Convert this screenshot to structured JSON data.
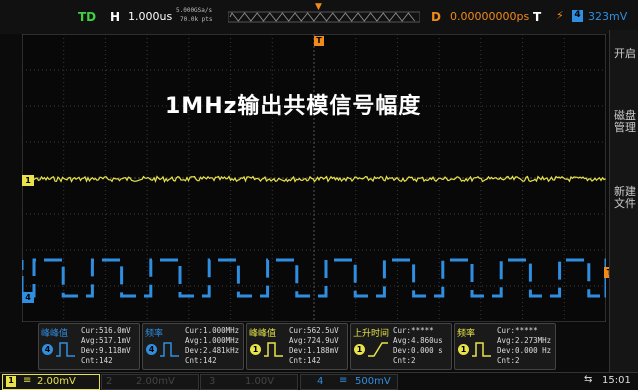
{
  "overlay_title": "1MHz输出共模信号幅度",
  "topbar": {
    "trigger_status": "TD",
    "horizontal_label": "H",
    "timebase": "1.000us",
    "sample_rate": "5.000GSa/s",
    "memory_depth": "70.0k pts",
    "delay_label": "D",
    "delay_value": "0.00000000ps",
    "trigger_label": "T",
    "trigger_channel": "4",
    "trigger_level": "323mV"
  },
  "right_panel": {
    "tab1": "开启",
    "tab2": "磁盘管理",
    "tab3": "新建文件"
  },
  "markers": {
    "ch1": "1",
    "ch4": "4",
    "trigger": "T",
    "top": "T"
  },
  "measurements": [
    {
      "name": "峰峰值",
      "channel": "4",
      "cur": "Cur:516.0mV",
      "avg": "Avg:517.1mV",
      "dev": "Dev:9.118mV",
      "cnt": "Cnt:142"
    },
    {
      "name": "频率",
      "channel": "4",
      "cur": "Cur:1.000MHz",
      "avg": "Avg:1.000MHz",
      "dev": "Dev:2.481kHz",
      "cnt": "Cnt:142"
    },
    {
      "name": "峰峰值",
      "channel": "1",
      "cur": "Cur:562.5uV",
      "avg": "Avg:724.9uV",
      "dev": "Dev:1.188mV",
      "cnt": "Cnt:142"
    },
    {
      "name": "上升时间",
      "channel": "1",
      "cur": "Cur:*****",
      "avg": "Avg:4.860us",
      "dev": "Dev:0.000 s",
      "cnt": "Cnt:2"
    },
    {
      "name": "频率",
      "channel": "1",
      "cur": "Cur:*****",
      "avg": "Avg:2.273MHz",
      "dev": "Dev:0.000 Hz",
      "cnt": "Cnt:2"
    }
  ],
  "bottombar": {
    "ch1_num": "1",
    "ch1_scale": "2.00mV",
    "ch2_num": "2",
    "ch2_scale": "2.00mV",
    "ch3_num": "3",
    "ch3_scale": "1.00V",
    "ch4_num": "4",
    "ch4_scale": "500mV",
    "time": "15:01"
  },
  "colors": {
    "ch1": "#e8e34a",
    "ch4": "#2f8ee0",
    "trigger": "#f08a1a",
    "grid": "#3a3a3a"
  },
  "waveforms": {
    "ch1_type": "noise-flat",
    "ch4_type": "square",
    "ch4_periods_visible": 10
  }
}
